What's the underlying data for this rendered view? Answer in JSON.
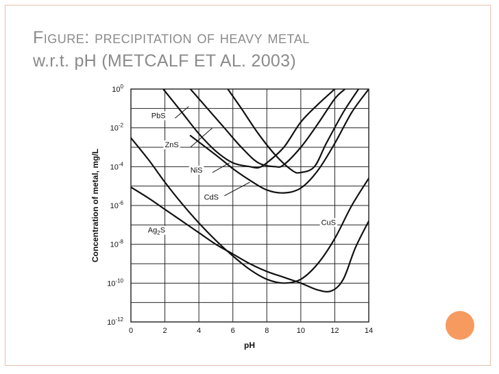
{
  "slide": {
    "title_line1": "Figure: precipitation of heavy metal",
    "title_line2": "w.r.t. pH (METCALF ET AL. 2003)",
    "colors": {
      "border": "#e8bfae",
      "title": "#8a8a8a",
      "accent": "#f79a60"
    }
  },
  "chart_data": {
    "type": "line",
    "title": "",
    "xlabel": "pH",
    "ylabel": "Concentration of metal, mg/L",
    "xlim": [
      0,
      14
    ],
    "ylim_log10": [
      -12,
      0
    ],
    "y_scale": "log",
    "grid": true,
    "x_ticks": [
      "0",
      "2",
      "4",
      "6",
      "8",
      "10",
      "12",
      "14"
    ],
    "y_ticks": [
      {
        "base": "10",
        "exp": "0",
        "value": 0
      },
      {
        "base": "10",
        "exp": "-2",
        "value": -2
      },
      {
        "base": "10",
        "exp": "-4",
        "value": -4
      },
      {
        "base": "10",
        "exp": "-6",
        "value": -6
      },
      {
        "base": "10",
        "exp": "-8",
        "value": -8
      },
      {
        "base": "10",
        "exp": "-10",
        "value": -10
      },
      {
        "base": "10",
        "exp": "-12",
        "value": -12
      }
    ],
    "series": [
      {
        "name": "PbS",
        "label_parts": [
          "PbS"
        ],
        "label_at": [
          1.2,
          -1.5
        ],
        "leader": [
          [
            2.6,
            -1.5
          ],
          [
            3.4,
            -0.9
          ]
        ],
        "points": [
          [
            1.9,
            0
          ],
          [
            3,
            -1.2
          ],
          [
            4,
            -2.3
          ],
          [
            5,
            -3.2
          ],
          [
            6,
            -3.8
          ],
          [
            7,
            -4.0
          ],
          [
            7.5,
            -4.05
          ],
          [
            8,
            -3.8
          ],
          [
            9,
            -3.0
          ],
          [
            10,
            -1.7
          ],
          [
            11,
            -0.8
          ],
          [
            12,
            0
          ]
        ]
      },
      {
        "name": "ZnS",
        "label_parts": [
          "ZnS"
        ],
        "label_at": [
          2.0,
          -3.0
        ],
        "leader": [
          [
            3.5,
            -3.0
          ],
          [
            4.8,
            -2.0
          ]
        ],
        "points": [
          [
            3.5,
            0
          ],
          [
            4.5,
            -1.0
          ],
          [
            5.5,
            -2.0
          ],
          [
            6.5,
            -3.0
          ],
          [
            7.5,
            -3.8
          ],
          [
            8.5,
            -4.0
          ],
          [
            9,
            -3.9
          ],
          [
            10,
            -3.0
          ],
          [
            11,
            -1.8
          ],
          [
            12,
            -0.5
          ],
          [
            12.6,
            0
          ]
        ]
      },
      {
        "name": "NiS",
        "label_parts": [
          "NiS"
        ],
        "label_at": [
          3.5,
          -4.3
        ],
        "leader": [
          [
            4.8,
            -4.3
          ],
          [
            5.8,
            -3.8
          ]
        ],
        "points": [
          [
            5.7,
            0
          ],
          [
            6.5,
            -1.0
          ],
          [
            7.5,
            -2.3
          ],
          [
            8.5,
            -3.4
          ],
          [
            9.5,
            -4.2
          ],
          [
            10,
            -4.3
          ],
          [
            10.8,
            -4.0
          ],
          [
            11.5,
            -2.8
          ],
          [
            12.5,
            -1.2
          ],
          [
            13.4,
            0
          ]
        ]
      },
      {
        "name": "CdS",
        "label_parts": [
          "CdS"
        ],
        "label_at": [
          4.3,
          -5.7
        ],
        "leader": [
          [
            5.5,
            -5.5
          ],
          [
            7.0,
            -4.8
          ]
        ],
        "points": [
          [
            3.5,
            -2.4
          ],
          [
            5,
            -3.4
          ],
          [
            6,
            -4.1
          ],
          [
            7,
            -4.7
          ],
          [
            8,
            -5.2
          ],
          [
            9,
            -5.35
          ],
          [
            10,
            -5.1
          ],
          [
            11,
            -4.2
          ],
          [
            12,
            -2.8
          ],
          [
            13,
            -1.2
          ],
          [
            14,
            0
          ]
        ]
      },
      {
        "name": "CuS",
        "label_parts": [
          "CuS"
        ],
        "label_at": [
          11.2,
          -7.0
        ],
        "leader": [],
        "points": [
          [
            -0.3,
            -2.2
          ],
          [
            1,
            -3.6
          ],
          [
            2,
            -4.8
          ],
          [
            3,
            -5.9
          ],
          [
            4,
            -6.9
          ],
          [
            5,
            -7.8
          ],
          [
            6,
            -8.6
          ],
          [
            7,
            -9.3
          ],
          [
            8,
            -9.8
          ],
          [
            9,
            -10.0
          ],
          [
            10,
            -9.8
          ],
          [
            11,
            -9.0
          ],
          [
            12,
            -7.7
          ],
          [
            13,
            -6.0
          ],
          [
            14,
            -4.6
          ]
        ]
      },
      {
        "name": "Ag2S",
        "label_parts": [
          "Ag",
          "2",
          "S"
        ],
        "label_at": [
          1.0,
          -7.4
        ],
        "leader": [],
        "points": [
          [
            -0.3,
            -4.9
          ],
          [
            1,
            -5.6
          ],
          [
            2,
            -6.2
          ],
          [
            3,
            -6.8
          ],
          [
            4,
            -7.4
          ],
          [
            5,
            -8.0
          ],
          [
            6,
            -8.5
          ],
          [
            7,
            -9.0
          ],
          [
            8,
            -9.4
          ],
          [
            9,
            -9.7
          ],
          [
            10,
            -10.0
          ],
          [
            11,
            -10.35
          ],
          [
            11.8,
            -10.4
          ],
          [
            12.5,
            -9.8
          ],
          [
            13.2,
            -8.2
          ],
          [
            14,
            -6.8
          ]
        ]
      }
    ]
  }
}
